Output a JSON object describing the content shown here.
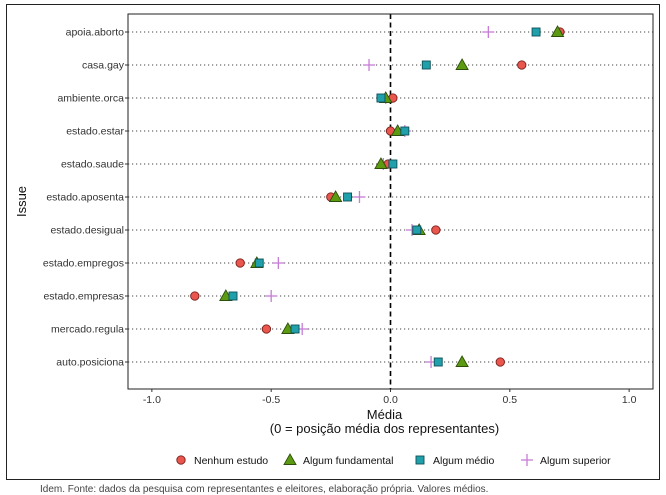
{
  "chart_data": {
    "type": "scatter",
    "ylabel": "Issue",
    "xlabel": "Média",
    "xlabel_sub": "(0 = posição média dos representantes)",
    "xlim": [
      -1.1,
      1.1
    ],
    "xticks": [
      -1.0,
      -0.5,
      0.0,
      0.5,
      1.0
    ],
    "xtick_labels": [
      "-1.0",
      "-0.5",
      "0.0",
      "0.5",
      "1.0"
    ],
    "reference_line_x": 0,
    "legend_position": "bottom",
    "categories": [
      "apoia.aborto",
      "casa.gay",
      "ambiente.orca",
      "estado.estar",
      "estado.saude",
      "estado.aposenta",
      "estado.desigual",
      "estado.empregos",
      "estado.empresas",
      "mercado.regula",
      "auto.posiciona"
    ],
    "series": [
      {
        "name": "Nenhum estudo",
        "shape": "circle",
        "color": "#e8564e",
        "values": [
          0.71,
          0.55,
          0.01,
          0.0,
          -0.01,
          -0.25,
          0.19,
          -0.63,
          -0.82,
          -0.52,
          0.46
        ]
      },
      {
        "name": "Algum fundamental",
        "shape": "triangle",
        "color": "#5c9a12",
        "values": [
          0.7,
          0.3,
          -0.02,
          0.03,
          -0.04,
          -0.23,
          0.12,
          -0.56,
          -0.69,
          -0.43,
          0.3
        ]
      },
      {
        "name": "Algum médio",
        "shape": "square",
        "color": "#20a0aa",
        "values": [
          0.61,
          0.15,
          -0.04,
          0.06,
          0.01,
          -0.18,
          0.11,
          -0.55,
          -0.66,
          -0.4,
          0.2
        ]
      },
      {
        "name": "Algum superior",
        "shape": "plus",
        "color": "#c77cd6",
        "values": [
          0.41,
          -0.09,
          -0.02,
          0.06,
          -0.03,
          -0.13,
          0.09,
          -0.47,
          -0.5,
          -0.37,
          0.17
        ]
      }
    ]
  },
  "caption": "Idem. Fonte: dados da pesquisa com representantes e eleitores, elaboração própria. Valores médios."
}
